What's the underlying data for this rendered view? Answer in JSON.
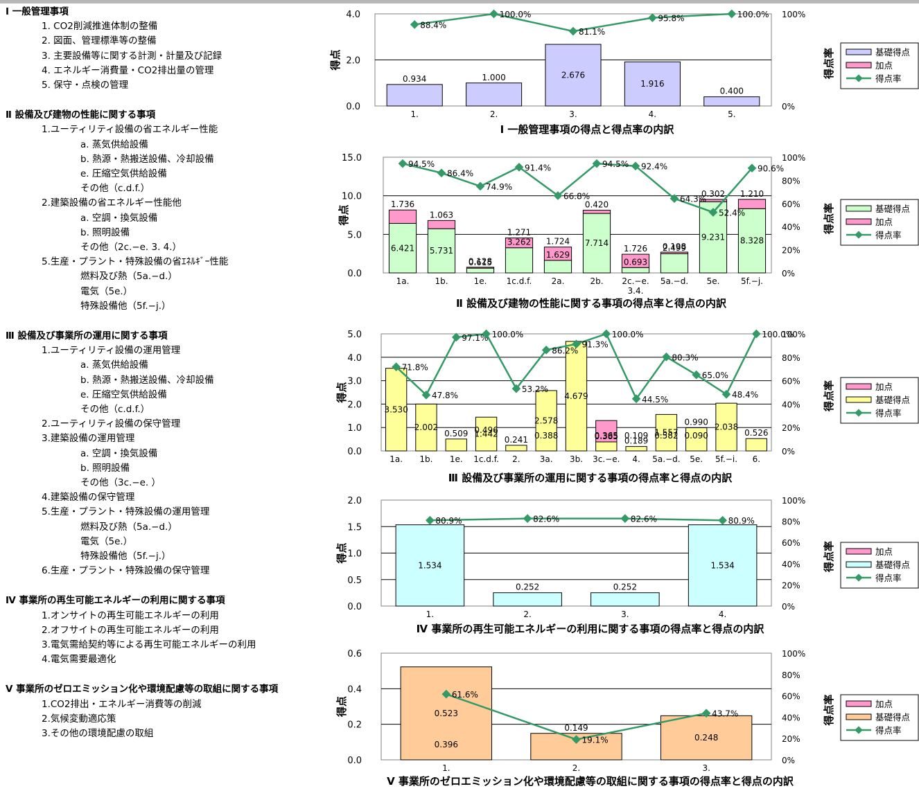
{
  "outline": [
    {
      "text": "Ⅰ 一般管理事項",
      "level": 0
    },
    {
      "text": "1. CO2削減推進体制の整備",
      "level": 1
    },
    {
      "text": "2. 図面、管理標準等の整備",
      "level": 1
    },
    {
      "text": "3. 主要設備等に関する計測・計量及び記録",
      "level": 1
    },
    {
      "text": "4. エネルギー消費量・CO2排出量の管理",
      "level": 1
    },
    {
      "text": "5. 保守・点検の管理",
      "level": 1
    },
    {
      "text": "",
      "level": -1
    },
    {
      "text": "Ⅱ 設備及び建物の性能に関する事項",
      "level": 0
    },
    {
      "text": "1.ユーティリティ設備の省エネルギー性能",
      "level": 1
    },
    {
      "text": "a. 蒸気供給設備",
      "level": 2
    },
    {
      "text": "b. 熱源・熱搬送設備、冷却設備",
      "level": 2
    },
    {
      "text": "e. 圧縮空気供給設備",
      "level": 2
    },
    {
      "text": "その他（c.d.f.）",
      "level": 2
    },
    {
      "text": "2.建築設備の省エネルギー性能他",
      "level": 1
    },
    {
      "text": "a. 空調・換気設備",
      "level": 2
    },
    {
      "text": "b. 照明設備",
      "level": 2
    },
    {
      "text": "その他（2c.−e. 3. 4.）",
      "level": 2
    },
    {
      "text": "5.生産・プラント・特殊設備の省ｴﾈﾙｷﾞｰ性能",
      "level": 1
    },
    {
      "text": "燃料及び熱（5a.−d.）",
      "level": 2
    },
    {
      "text": "電気（5e.）",
      "level": 2
    },
    {
      "text": "特殊設備他（5f.−j.）",
      "level": 2
    },
    {
      "text": "",
      "level": -1
    },
    {
      "text": "Ⅲ 設備及び事業所の運用に関する事項",
      "level": 0
    },
    {
      "text": "1.ユーティリティ設備の運用管理",
      "level": 1
    },
    {
      "text": "a. 蒸気供給設備",
      "level": 2
    },
    {
      "text": "b. 熱源・熱搬送設備、冷却設備",
      "level": 2
    },
    {
      "text": "e. 圧縮空気供給設備",
      "level": 2
    },
    {
      "text": "その他（c.d.f.）",
      "level": 2
    },
    {
      "text": "2.ユーティリティ設備の保守管理",
      "level": 1
    },
    {
      "text": "3.建築設備の運用管理",
      "level": 1
    },
    {
      "text": "a. 空調・換気設備",
      "level": 2
    },
    {
      "text": "b. 照明設備",
      "level": 2
    },
    {
      "text": "その他（3c.−e. ）",
      "level": 2
    },
    {
      "text": "4.建築設備の保守管理",
      "level": 1
    },
    {
      "text": "5.生産・プラント・特殊設備の運用管理",
      "level": 1
    },
    {
      "text": "燃料及び熱（5a.−d.）",
      "level": 2
    },
    {
      "text": "電気（5e.）",
      "level": 2
    },
    {
      "text": "特殊設備他（5f.−j.）",
      "level": 2
    },
    {
      "text": "6.生産・プラント・特殊設備の保守管理",
      "level": 1
    },
    {
      "text": "",
      "level": -1
    },
    {
      "text": "Ⅳ 事業所の再生可能エネルギーの利用に関する事項",
      "level": 0
    },
    {
      "text": "1.オンサイトの再生可能エネルギーの利用",
      "level": 1
    },
    {
      "text": "2.オフサイトの再生可能エネルギーの利用",
      "level": 1
    },
    {
      "text": "3.電気需給契約等による再生可能エネルギーの利用",
      "level": 1
    },
    {
      "text": "4.電気需要最適化",
      "level": 1
    },
    {
      "text": "",
      "level": -1
    },
    {
      "text": "Ⅴ 事業所のゼロエミッション化や環境配慮等の取組に関する事項",
      "level": 0
    },
    {
      "text": "1.CO2排出・エネルギー消費等の削減",
      "level": 1
    },
    {
      "text": "2.気候変動適応策",
      "level": 1
    },
    {
      "text": "3.その他の環境配慮の取組",
      "level": 1
    }
  ],
  "colors": {
    "base_purple": "#ccccff",
    "base_green": "#ccffcc",
    "base_yellow": "#ffff99",
    "base_cyan": "#ccffff",
    "base_orange": "#ffcc99",
    "bonus": "#ff99cc",
    "line": "#339966",
    "bar_border": "#000000"
  },
  "chart_data": [
    {
      "type": "bar",
      "title": "Ⅰ 一般管理事項の得点と得点率の内訳",
      "ylabel": "得点",
      "y2label": "得点率",
      "ylim": [
        0,
        4
      ],
      "yticks": [
        "0.0",
        "2.0",
        "4.0"
      ],
      "y2ticks": [
        "0%",
        "100%"
      ],
      "categories": [
        "1.",
        "2.",
        "3.",
        "4.",
        "5."
      ],
      "series": [
        {
          "name": "基礎得点",
          "color": "#ccccff",
          "values": [
            0.934,
            1.0,
            2.676,
            1.916,
            0.4
          ],
          "labels": [
            "0.934",
            "1.000",
            "2.676",
            "1.916",
            "0.400"
          ]
        },
        {
          "name": "加点",
          "color": "#ff99cc",
          "values": [
            0,
            0,
            0,
            0,
            0
          ],
          "labels": []
        }
      ],
      "rate": {
        "name": "得点率",
        "values": [
          88.4,
          100.0,
          81.1,
          95.8,
          100.0
        ],
        "labels": [
          "88.4%",
          "100.0%",
          "81.1%",
          "95.8%",
          "100.0%"
        ]
      },
      "legend": [
        {
          "name": "基礎得点",
          "kind": "bar",
          "color": "#ccccff"
        },
        {
          "name": "加点",
          "kind": "bar",
          "color": "#ff99cc"
        },
        {
          "name": "得点率",
          "kind": "line",
          "color": "#339966"
        }
      ],
      "legend_position": "right",
      "grid": true
    },
    {
      "type": "bar",
      "title": "Ⅱ 設備及び建物の性能に関する事項の得点率と得点の内訳",
      "ylabel": "得点",
      "y2label": "得点率",
      "ylim": [
        0,
        15
      ],
      "yticks": [
        "0.0",
        "5.0",
        "10.0",
        "15.0"
      ],
      "y2ticks": [
        "0%",
        "20%",
        "40%",
        "60%",
        "80%",
        "100%"
      ],
      "categories": [
        "1a.",
        "1b.",
        "1e.",
        "1c.d.f.",
        "2a.",
        "2b.",
        "2c.−e.\n3.4.",
        "5a.−d.",
        "5e.",
        "5f.−j."
      ],
      "series": [
        {
          "name": "基礎得点",
          "color": "#ccffcc",
          "values": [
            6.421,
            5.731,
            0.615,
            3.262,
            1.629,
            7.714,
            0.693,
            2.499,
            9.231,
            8.328
          ],
          "labels": [
            "6.421",
            "5.731",
            "0.615",
            "3.262",
            "1.629",
            "7.714",
            "0.693",
            "2.499",
            "9.231",
            "8.328"
          ]
        },
        {
          "name": "加点",
          "color": "#ff99cc",
          "values": [
            1.736,
            1.063,
            0.128,
            1.271,
            1.724,
            0.42,
            1.726,
            0.198,
            0.302,
            1.21
          ],
          "labels": [
            "1.736",
            "1.063",
            "0.128",
            "1.271",
            "1.724",
            "0.420",
            "1.726",
            "0.198",
            "0.302",
            "1.210"
          ]
        }
      ],
      "rate": {
        "name": "得点率",
        "values": [
          94.5,
          86.4,
          74.9,
          91.4,
          66.8,
          94.5,
          92.4,
          64.3,
          52.4,
          90.6
        ],
        "labels": [
          "94.5%",
          "86.4%",
          "74.9%",
          "91.4%",
          "66.8%",
          "94.5%",
          "92.4%",
          "64.3%",
          "52.4%",
          "90.6%"
        ]
      },
      "legend": [
        {
          "name": "基礎得点",
          "kind": "bar",
          "color": "#ccffcc"
        },
        {
          "name": "加点",
          "kind": "bar",
          "color": "#ff99cc"
        },
        {
          "name": "得点率",
          "kind": "line",
          "color": "#339966"
        }
      ],
      "legend_position": "right",
      "grid": true
    },
    {
      "type": "bar",
      "title": "Ⅲ 設備及び事業所の運用に関する事項の得点率と得点の内訳",
      "ylabel": "得点",
      "y2label": "得点率",
      "ylim": [
        0,
        5
      ],
      "yticks": [
        "0.0",
        "1.0",
        "2.0",
        "3.0",
        "4.0",
        "5.0"
      ],
      "y2ticks": [
        "0%",
        "20%",
        "40%",
        "60%",
        "80%",
        "100%"
      ],
      "categories": [
        "1a.",
        "1b.",
        "1e.",
        "1c.d.f.",
        "2.",
        "3a.",
        "3b.",
        "3c.−e.",
        "4.",
        "5a.−d.",
        "5e.",
        "5f.−i.",
        "6."
      ],
      "series": [
        {
          "name": "基礎得点",
          "color": "#ffff99",
          "values": [
            3.53,
            2.002,
            0.509,
            1.442,
            0.241,
            2.578,
            4.679,
            0.385,
            0.189,
            1.557,
            0.99,
            2.038,
            0.526
          ],
          "labels": [
            "3.530",
            "2.002",
            "0.509",
            "1.442",
            "0.241",
            "2.578",
            "4.679",
            "0.385",
            "0.189",
            "1.557",
            "0.990",
            "2.038",
            "0.526"
          ]
        },
        {
          "name": "加点",
          "color": "#ff99cc",
          "values": [
            0,
            0,
            0,
            0,
            0,
            0,
            0,
            0.913,
            0,
            0,
            0,
            0,
            0
          ],
          "labels": []
        }
      ],
      "rate": {
        "name": "得点率",
        "values": [
          71.8,
          47.8,
          97.1,
          100.0,
          53.2,
          86.2,
          91.3,
          100.0,
          44.5,
          80.3,
          65.0,
          48.4,
          100.0
        ],
        "labels": [
          "71.8%",
          "47.8%",
          "97.1%",
          "100.0%",
          "53.2%",
          "86.2%",
          "91.3%",
          "100.0%",
          "44.5%",
          "80.3%",
          "65.0%",
          "48.4%",
          "100.0%"
        ]
      },
      "extra_labels": [
        "0.496",
        "0.388",
        "0.365",
        "0.109",
        "0.582",
        "0.090"
      ],
      "legend": [
        {
          "name": "加点",
          "kind": "bar",
          "color": "#ff99cc"
        },
        {
          "name": "基礎得点",
          "kind": "bar",
          "color": "#ffff99"
        },
        {
          "name": "得点率",
          "kind": "line",
          "color": "#339966"
        }
      ],
      "legend_position": "right",
      "grid": true
    },
    {
      "type": "bar",
      "title": "Ⅳ 事業所の再生可能エネルギーの利用に関する事項の得点率と得点の内訳",
      "ylabel": "得点",
      "y2label": "得点率",
      "ylim": [
        0,
        2
      ],
      "yticks": [
        "0.0",
        "0.5",
        "1.0",
        "1.5",
        "2.0"
      ],
      "y2ticks": [
        "0%",
        "20%",
        "40%",
        "60%",
        "80%",
        "100%"
      ],
      "categories": [
        "1.",
        "2.",
        "3.",
        "4."
      ],
      "series": [
        {
          "name": "基礎得点",
          "color": "#ccffff",
          "values": [
            1.534,
            0.252,
            0.252,
            1.534
          ],
          "labels": [
            "1.534",
            "0.252",
            "0.252",
            "1.534"
          ]
        },
        {
          "name": "加点",
          "color": "#ff99cc",
          "values": [
            0,
            0,
            0,
            0
          ],
          "labels": []
        }
      ],
      "rate": {
        "name": "得点率",
        "values": [
          80.9,
          82.6,
          82.6,
          80.9
        ],
        "labels": [
          "80.9%",
          "82.6%",
          "82.6%",
          "80.9%"
        ]
      },
      "legend": [
        {
          "name": "加点",
          "kind": "bar",
          "color": "#ff99cc"
        },
        {
          "name": "基礎得点",
          "kind": "bar",
          "color": "#ccffff"
        },
        {
          "name": "得点率",
          "kind": "line",
          "color": "#339966"
        }
      ],
      "legend_position": "right",
      "grid": true
    },
    {
      "type": "bar",
      "title": "Ⅴ 事業所のゼロエミッション化や環境配慮等の取組に関する事項の得点率と得点の内訳",
      "ylabel": "得点",
      "y2label": "得点率",
      "ylim": [
        0,
        0.6
      ],
      "yticks": [
        "0.0",
        "0.2",
        "0.4",
        "0.6"
      ],
      "y2ticks": [
        "0%",
        "20%",
        "40%",
        "60%",
        "80%",
        "100%"
      ],
      "categories": [
        "1.",
        "2.",
        "3."
      ],
      "series": [
        {
          "name": "基礎得点",
          "color": "#ffcc99",
          "values": [
            0.523,
            0.149,
            0.248
          ],
          "labels": [
            "0.523",
            "0.149",
            "0.248"
          ]
        },
        {
          "name": "加点",
          "color": "#ff99cc",
          "values": [
            0,
            0,
            0
          ],
          "labels": []
        }
      ],
      "rate": {
        "name": "得点率",
        "values": [
          61.6,
          19.1,
          43.7
        ],
        "labels": [
          "61.6%",
          "19.1%",
          "43.7%"
        ]
      },
      "extra_labels": [
        "0.396"
      ],
      "legend": [
        {
          "name": "加点",
          "kind": "bar",
          "color": "#ff99cc"
        },
        {
          "name": "基礎得点",
          "kind": "bar",
          "color": "#ffcc99"
        },
        {
          "name": "得点率",
          "kind": "line",
          "color": "#339966"
        }
      ],
      "legend_position": "right",
      "grid": true
    }
  ]
}
